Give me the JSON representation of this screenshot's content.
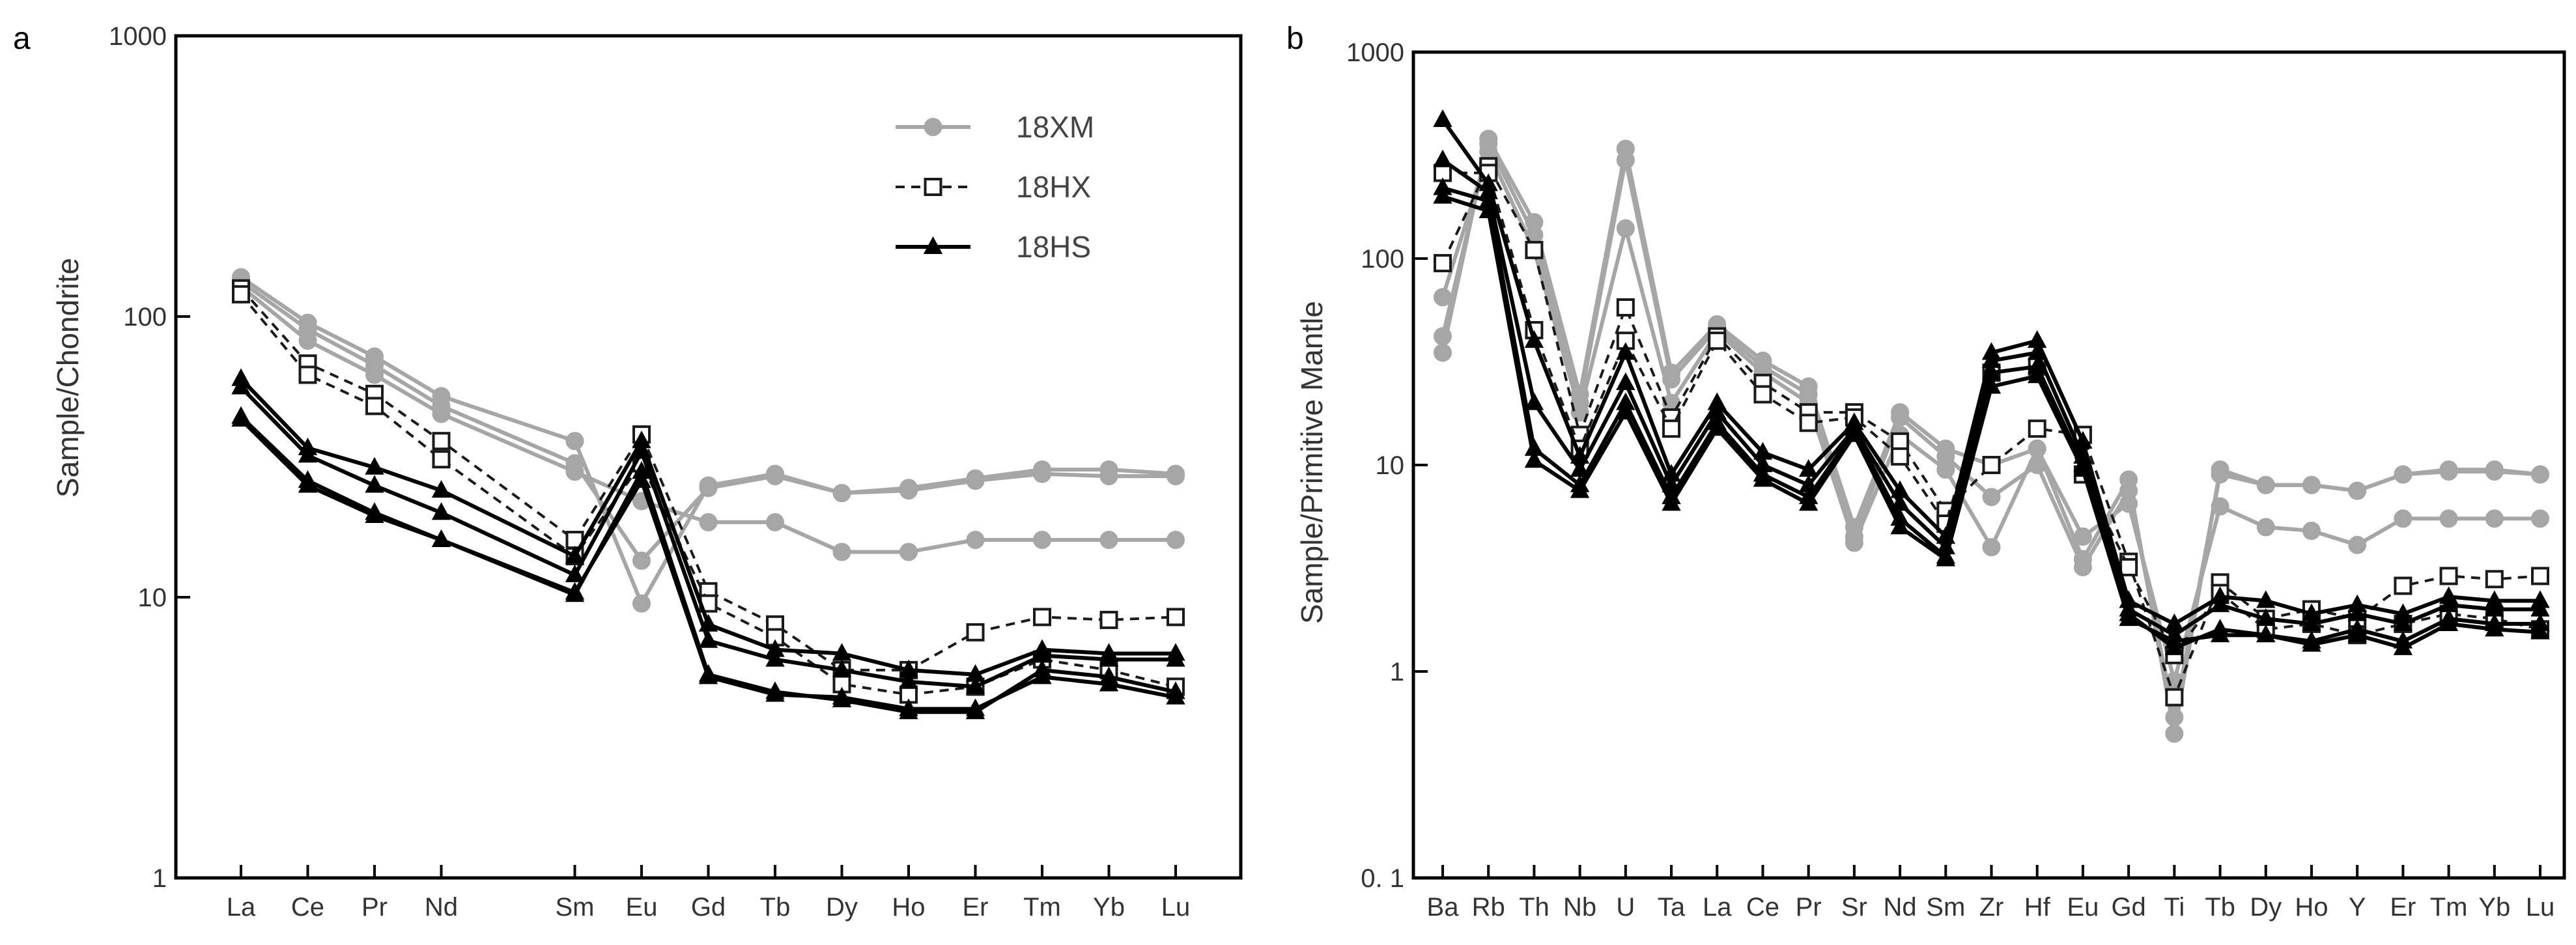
{
  "colors": {
    "18XM": "#a6a6a6",
    "18HX": "#1a1a1a",
    "18HS": "#000000"
  },
  "chart_data": [
    {
      "panel": "a",
      "type": "line",
      "yscale": "log",
      "ylim": [
        1,
        1000
      ],
      "yticks": [
        1,
        10,
        100,
        1000
      ],
      "ytick_labels": [
        "1",
        "10",
        "100",
        "1000"
      ],
      "ylabel": "Sample/Chondrite",
      "xlabel": "",
      "legend": {
        "position": "top-right",
        "entries": [
          {
            "name": "18XM",
            "marker": "circle",
            "dash": "solid"
          },
          {
            "name": "18HX",
            "marker": "square",
            "dash": "dashed"
          },
          {
            "name": "18HS",
            "marker": "triangle",
            "dash": "solid"
          }
        ]
      },
      "categories": [
        "La",
        "Ce",
        "Pr",
        "Nd",
        "",
        "Sm",
        "Eu",
        "Gd",
        "Tb",
        "Dy",
        "Ho",
        "Er",
        "Tm",
        "Yb",
        "Lu"
      ],
      "series": [
        {
          "name": "18XM-1",
          "group": "18XM",
          "values": [
            138,
            95,
            72,
            52,
            null,
            36,
            9.5,
            25,
            27.5,
            23.5,
            24.5,
            26.5,
            28.5,
            28.5,
            27.5
          ]
        },
        {
          "name": "18XM-2",
          "group": "18XM",
          "values": [
            133,
            90,
            67,
            48,
            null,
            30,
            13.5,
            24.5,
            27,
            23.5,
            24,
            26,
            27.5,
            27,
            27
          ]
        },
        {
          "name": "18XM-3",
          "group": "18XM",
          "values": [
            128,
            82,
            62,
            45,
            null,
            28,
            22,
            18.5,
            18.5,
            14.5,
            14.5,
            16,
            16,
            16,
            16
          ]
        },
        {
          "name": "18HX-1",
          "group": "18HX",
          "values": [
            126,
            68,
            53,
            36,
            null,
            16,
            38,
            10.5,
            8.0,
            5.5,
            5.5,
            7.5,
            8.5,
            8.3,
            8.5
          ]
        },
        {
          "name": "18HX-2",
          "group": "18HX",
          "values": [
            120,
            62,
            48,
            31,
            null,
            14,
            30,
            9.5,
            7.2,
            4.9,
            4.5,
            4.8,
            6.0,
            5.5,
            4.8
          ]
        },
        {
          "name": "18HS-1",
          "group": "18HS",
          "values": [
            60,
            34,
            29,
            24,
            null,
            14,
            36,
            8.0,
            6.5,
            6.3,
            5.5,
            5.3,
            6.5,
            6.3,
            6.3
          ]
        },
        {
          "name": "18HS-2",
          "group": "18HS",
          "values": [
            56,
            32,
            25,
            20,
            null,
            12,
            33,
            7.0,
            6.0,
            5.5,
            5.0,
            4.8,
            6.2,
            6.0,
            6.0
          ]
        },
        {
          "name": "18HS-3",
          "group": "18HS",
          "values": [
            44,
            26,
            20,
            16,
            null,
            10.2,
            28,
            5.3,
            4.6,
            4.3,
            3.9,
            3.9,
            5.5,
            5.2,
            4.6
          ]
        },
        {
          "name": "18HS-4",
          "group": "18HS",
          "values": [
            43,
            25,
            19.5,
            16,
            null,
            10.4,
            26,
            5.2,
            4.5,
            4.4,
            4.0,
            4.0,
            5.2,
            4.9,
            4.4
          ]
        }
      ]
    },
    {
      "panel": "b",
      "type": "line",
      "yscale": "log",
      "ylim": [
        0.1,
        1000
      ],
      "yticks": [
        0.1,
        1,
        10,
        100,
        1000
      ],
      "ytick_labels": [
        "0. 1",
        "1",
        "10",
        "100",
        "1000"
      ],
      "ylabel": "Sample/Primitive Mantle",
      "xlabel": "",
      "categories": [
        "Ba",
        "Rb",
        "Th",
        "Nb",
        "U",
        "Ta",
        "La",
        "Ce",
        "Pr",
        "Sr",
        "Nd",
        "Sm",
        "Zr",
        "Hf",
        "Eu",
        "Gd",
        "Ti",
        "Tb",
        "Dy",
        "Ho",
        "Y",
        "Er",
        "Tm",
        "Yb",
        "Lu"
      ],
      "series": [
        {
          "name": "18XM-1",
          "group": "18XM",
          "values": [
            35,
            380,
            150,
            22,
            340,
            28,
            48,
            32,
            24,
            5,
            18,
            12,
            10,
            12,
            3.5,
            8.5,
            0.5,
            9.5,
            8,
            8,
            7.5,
            9,
            9.5,
            9.5,
            9
          ]
        },
        {
          "name": "18XM-2",
          "group": "18XM",
          "values": [
            42,
            360,
            130,
            20,
            300,
            26,
            46,
            30,
            22,
            4.5,
            17,
            11,
            7,
            10,
            3.2,
            7.5,
            0.6,
            9,
            8,
            8,
            7.5,
            9,
            9.3,
            9.3,
            9
          ]
        },
        {
          "name": "18XM-3",
          "group": "18XM",
          "values": [
            65,
            330,
            110,
            18,
            140,
            20,
            44,
            28,
            20,
            4.2,
            14,
            9.5,
            4.0,
            12,
            4.5,
            6.5,
            0.9,
            6.3,
            5,
            4.8,
            4.1,
            5.5,
            5.5,
            5.5,
            5.5
          ]
        },
        {
          "name": "18HX-1",
          "group": "18HX",
          "values": [
            95,
            280,
            110,
            14,
            58,
            17,
            42,
            25,
            18,
            18,
            13,
            6,
            10,
            15,
            14,
            3.4,
            0.75,
            2.7,
            1.8,
            2.0,
            1.8,
            2.6,
            2.9,
            2.8,
            2.9
          ]
        },
        {
          "name": "18HX-2",
          "group": "18HX",
          "values": [
            260,
            260,
            45,
            12,
            40,
            15,
            40,
            22,
            16,
            17,
            11,
            5.2,
            28,
            30,
            9,
            3.2,
            1.2,
            2.4,
            1.6,
            1.7,
            1.5,
            1.7,
            1.9,
            1.8,
            1.6
          ]
        },
        {
          "name": "18HS-1",
          "group": "18HS",
          "values": [
            470,
            230,
            40,
            11,
            35,
            9,
            20,
            11.5,
            9.5,
            16,
            7.5,
            4.5,
            35,
            40,
            13,
            2.2,
            1.7,
            2.3,
            2.2,
            1.9,
            2.1,
            1.9,
            2.3,
            2.2,
            2.2
          ]
        },
        {
          "name": "18HS-2",
          "group": "18HS",
          "values": [
            300,
            210,
            20,
            9.5,
            25,
            8,
            18,
            10,
            8,
            15,
            6.5,
            4,
            32,
            35,
            11,
            2.0,
            1.5,
            2.1,
            1.8,
            1.7,
            1.9,
            1.7,
            2.1,
            2.0,
            2.0
          ]
        },
        {
          "name": "18HS-3",
          "group": "18HS",
          "values": [
            220,
            190,
            12,
            8,
            20,
            7,
            16,
            9,
            7,
            14.5,
            5.5,
            3.6,
            28,
            30,
            10,
            1.9,
            1.3,
            1.6,
            1.5,
            1.4,
            1.6,
            1.4,
            1.8,
            1.7,
            1.7
          ]
        },
        {
          "name": "18HS-4",
          "group": "18HS",
          "values": [
            200,
            170,
            10.5,
            7.5,
            18,
            6.5,
            15,
            8.5,
            6.5,
            14,
            5.0,
            3.5,
            24,
            27,
            9.5,
            1.8,
            1.4,
            1.5,
            1.5,
            1.35,
            1.5,
            1.3,
            1.7,
            1.6,
            1.55
          ]
        }
      ]
    }
  ]
}
